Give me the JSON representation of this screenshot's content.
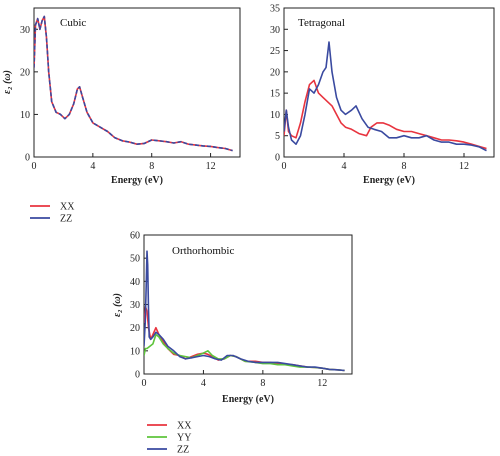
{
  "colors": {
    "xx": "#e8343f",
    "yy": "#5ec43c",
    "zz": "#3a4aa0"
  },
  "chart_data": [
    {
      "type": "line",
      "title": "Cubic",
      "xlabel": "Energy (eV)",
      "ylabel": "ε₂ (ω)",
      "xlim": [
        0,
        14
      ],
      "ylim": [
        0,
        35
      ],
      "xticks": [
        0,
        4,
        8,
        12
      ],
      "yticks": [
        0,
        10,
        20,
        30
      ],
      "series": [
        {
          "name": "XX",
          "color": "#e8343f",
          "dashed": false,
          "x": [
            0,
            0.1,
            0.25,
            0.4,
            0.55,
            0.7,
            0.85,
            1.0,
            1.2,
            1.5,
            1.8,
            2.1,
            2.4,
            2.7,
            2.95,
            3.1,
            3.3,
            3.6,
            4.0,
            4.5,
            5.0,
            5.5,
            6.0,
            6.5,
            7.0,
            7.5,
            8.0,
            8.5,
            9.0,
            9.5,
            10.0,
            10.5,
            11.0,
            11.5,
            12.0,
            12.5,
            13.0,
            13.5
          ],
          "y": [
            21,
            31,
            32.5,
            30,
            32,
            33,
            28,
            20,
            13,
            10.5,
            10,
            9,
            10,
            12.5,
            16,
            16.5,
            14,
            10.5,
            8,
            7,
            6,
            4.5,
            3.8,
            3.5,
            3,
            3.2,
            4,
            3.8,
            3.6,
            3.3,
            3.6,
            3,
            2.8,
            2.6,
            2.5,
            2.2,
            2,
            1.5
          ]
        },
        {
          "name": "ZZ",
          "color": "#3a4aa0",
          "dashed": true,
          "x": [
            0,
            0.1,
            0.25,
            0.4,
            0.55,
            0.7,
            0.85,
            1.0,
            1.2,
            1.5,
            1.8,
            2.1,
            2.4,
            2.7,
            2.95,
            3.1,
            3.3,
            3.6,
            4.0,
            4.5,
            5.0,
            5.5,
            6.0,
            6.5,
            7.0,
            7.5,
            8.0,
            8.5,
            9.0,
            9.5,
            10.0,
            10.5,
            11.0,
            11.5,
            12.0,
            12.5,
            13.0,
            13.5
          ],
          "y": [
            21,
            31,
            32.5,
            30,
            32,
            33,
            28,
            20,
            13,
            10.5,
            10,
            9,
            10,
            12.5,
            16,
            16.5,
            14,
            10.5,
            8,
            7,
            6,
            4.5,
            3.8,
            3.5,
            3,
            3.2,
            4,
            3.8,
            3.6,
            3.3,
            3.6,
            3,
            2.8,
            2.6,
            2.5,
            2.2,
            2,
            1.5
          ]
        }
      ],
      "legend": [
        "XX",
        "ZZ"
      ]
    },
    {
      "type": "line",
      "title": "Tetragonal",
      "xlabel": "Energy (eV)",
      "ylabel": "",
      "xlim": [
        0,
        14
      ],
      "ylim": [
        0,
        35
      ],
      "xticks": [
        0,
        4,
        8,
        12
      ],
      "yticks": [
        0,
        5,
        10,
        15,
        20,
        25,
        30,
        35
      ],
      "series": [
        {
          "name": "XX",
          "color": "#e8343f",
          "x": [
            0,
            0.15,
            0.3,
            0.5,
            0.8,
            1.1,
            1.4,
            1.7,
            2.0,
            2.3,
            2.6,
            2.9,
            3.2,
            3.5,
            3.8,
            4.1,
            4.5,
            5.0,
            5.5,
            5.8,
            6.2,
            6.6,
            7.0,
            7.5,
            8.0,
            8.5,
            9.0,
            9.5,
            10.0,
            10.5,
            11.0,
            11.5,
            12.0,
            12.5,
            13.0,
            13.5
          ],
          "y": [
            5,
            11,
            6,
            5,
            4.5,
            8,
            13,
            17,
            18,
            15,
            14,
            13,
            12,
            10,
            8,
            7,
            6.5,
            5.5,
            5,
            7,
            8,
            8,
            7.5,
            6.5,
            6,
            6,
            5.5,
            5,
            4.5,
            4,
            4,
            3.8,
            3.5,
            3,
            2.5,
            2
          ]
        },
        {
          "name": "ZZ",
          "color": "#3a4aa0",
          "x": [
            0,
            0.15,
            0.3,
            0.5,
            0.8,
            1.1,
            1.4,
            1.7,
            2.0,
            2.3,
            2.6,
            2.8,
            3.0,
            3.2,
            3.5,
            3.8,
            4.1,
            4.5,
            4.8,
            5.2,
            5.6,
            6.0,
            6.5,
            7.0,
            7.5,
            8.0,
            8.5,
            9.0,
            9.5,
            10.0,
            10.5,
            11.0,
            11.5,
            12.0,
            12.5,
            13.0,
            13.5
          ],
          "y": [
            6,
            11,
            7,
            4,
            3,
            5,
            10,
            16,
            15,
            17,
            20,
            21,
            27,
            20,
            14,
            11,
            10,
            11,
            12,
            9,
            7,
            6.5,
            6,
            4.5,
            4.5,
            5,
            4.5,
            4.5,
            5,
            4,
            3.5,
            3.5,
            3,
            3,
            2.8,
            2.4,
            1.5
          ]
        }
      ]
    },
    {
      "type": "line",
      "title": "Orthorhombic",
      "xlabel": "Energy (eV)",
      "ylabel": "ε₂ (ω)",
      "xlim": [
        0,
        14
      ],
      "ylim": [
        0,
        60
      ],
      "xticks": [
        0,
        4,
        8,
        12
      ],
      "yticks": [
        0,
        10,
        20,
        30,
        40,
        50,
        60
      ],
      "series": [
        {
          "name": "XX",
          "color": "#e8343f",
          "x": [
            0,
            0.1,
            0.2,
            0.3,
            0.45,
            0.6,
            0.8,
            1.0,
            1.3,
            1.6,
            2.0,
            2.4,
            2.8,
            3.2,
            3.6,
            4.0,
            4.3,
            4.6,
            5.0,
            5.4,
            5.8,
            6.2,
            6.8,
            7.5,
            8.0,
            8.5,
            9.0,
            9.5,
            10.0,
            10.5,
            11.0,
            11.5,
            12.0,
            12.5,
            13.0,
            13.5
          ],
          "y": [
            22,
            29,
            27,
            20,
            15,
            17,
            20,
            17,
            14,
            11,
            8.5,
            8,
            6.5,
            7.5,
            8.5,
            9,
            8.5,
            7.5,
            6,
            6.5,
            8,
            7.5,
            5.5,
            5.5,
            5,
            5,
            4.5,
            4,
            4,
            3.5,
            3,
            2.8,
            2.5,
            2,
            1.8,
            1.5
          ]
        },
        {
          "name": "YY",
          "color": "#5ec43c",
          "x": [
            0,
            0.1,
            0.2,
            0.4,
            0.6,
            0.8,
            1.0,
            1.3,
            1.6,
            2.0,
            2.4,
            2.8,
            3.2,
            3.6,
            4.0,
            4.3,
            4.6,
            5.0,
            5.4,
            5.8,
            6.2,
            6.8,
            7.5,
            8.0,
            8.5,
            9.0,
            9.5,
            10.0,
            10.5,
            11.0,
            11.5,
            12.0,
            12.5,
            13.0,
            13.5
          ],
          "y": [
            8,
            11,
            11,
            12,
            13,
            17,
            16,
            13,
            11,
            9,
            8,
            7.5,
            7,
            8,
            9,
            10,
            8,
            6.5,
            6.5,
            8,
            7.5,
            5.5,
            5,
            4.5,
            4.5,
            4,
            4,
            3.5,
            3,
            3,
            2.8,
            2.5,
            2,
            1.8,
            1.5
          ]
        },
        {
          "name": "ZZ",
          "color": "#3a4aa0",
          "x": [
            0,
            0.08,
            0.15,
            0.2,
            0.25,
            0.3,
            0.35,
            0.45,
            0.6,
            0.8,
            1.0,
            1.3,
            1.6,
            2.0,
            2.4,
            2.8,
            3.2,
            3.6,
            4.0,
            4.4,
            4.8,
            5.2,
            5.6,
            6.0,
            6.5,
            7.0,
            7.5,
            8.0,
            8.5,
            9.0,
            9.5,
            10.0,
            10.5,
            11.0,
            11.5,
            12.0,
            12.5,
            13.0,
            13.5
          ],
          "y": [
            12,
            22,
            38,
            53,
            47,
            28,
            16,
            15,
            16,
            18,
            17,
            15,
            12,
            10,
            7.5,
            6.5,
            7,
            7.5,
            8,
            7.5,
            6.5,
            6,
            8,
            8,
            6.5,
            5.5,
            5,
            5,
            5,
            5,
            4.5,
            4,
            3.5,
            3,
            3,
            2.5,
            2,
            1.8,
            1.5
          ]
        }
      ],
      "legend": [
        "XX",
        "YY",
        "ZZ"
      ]
    }
  ]
}
